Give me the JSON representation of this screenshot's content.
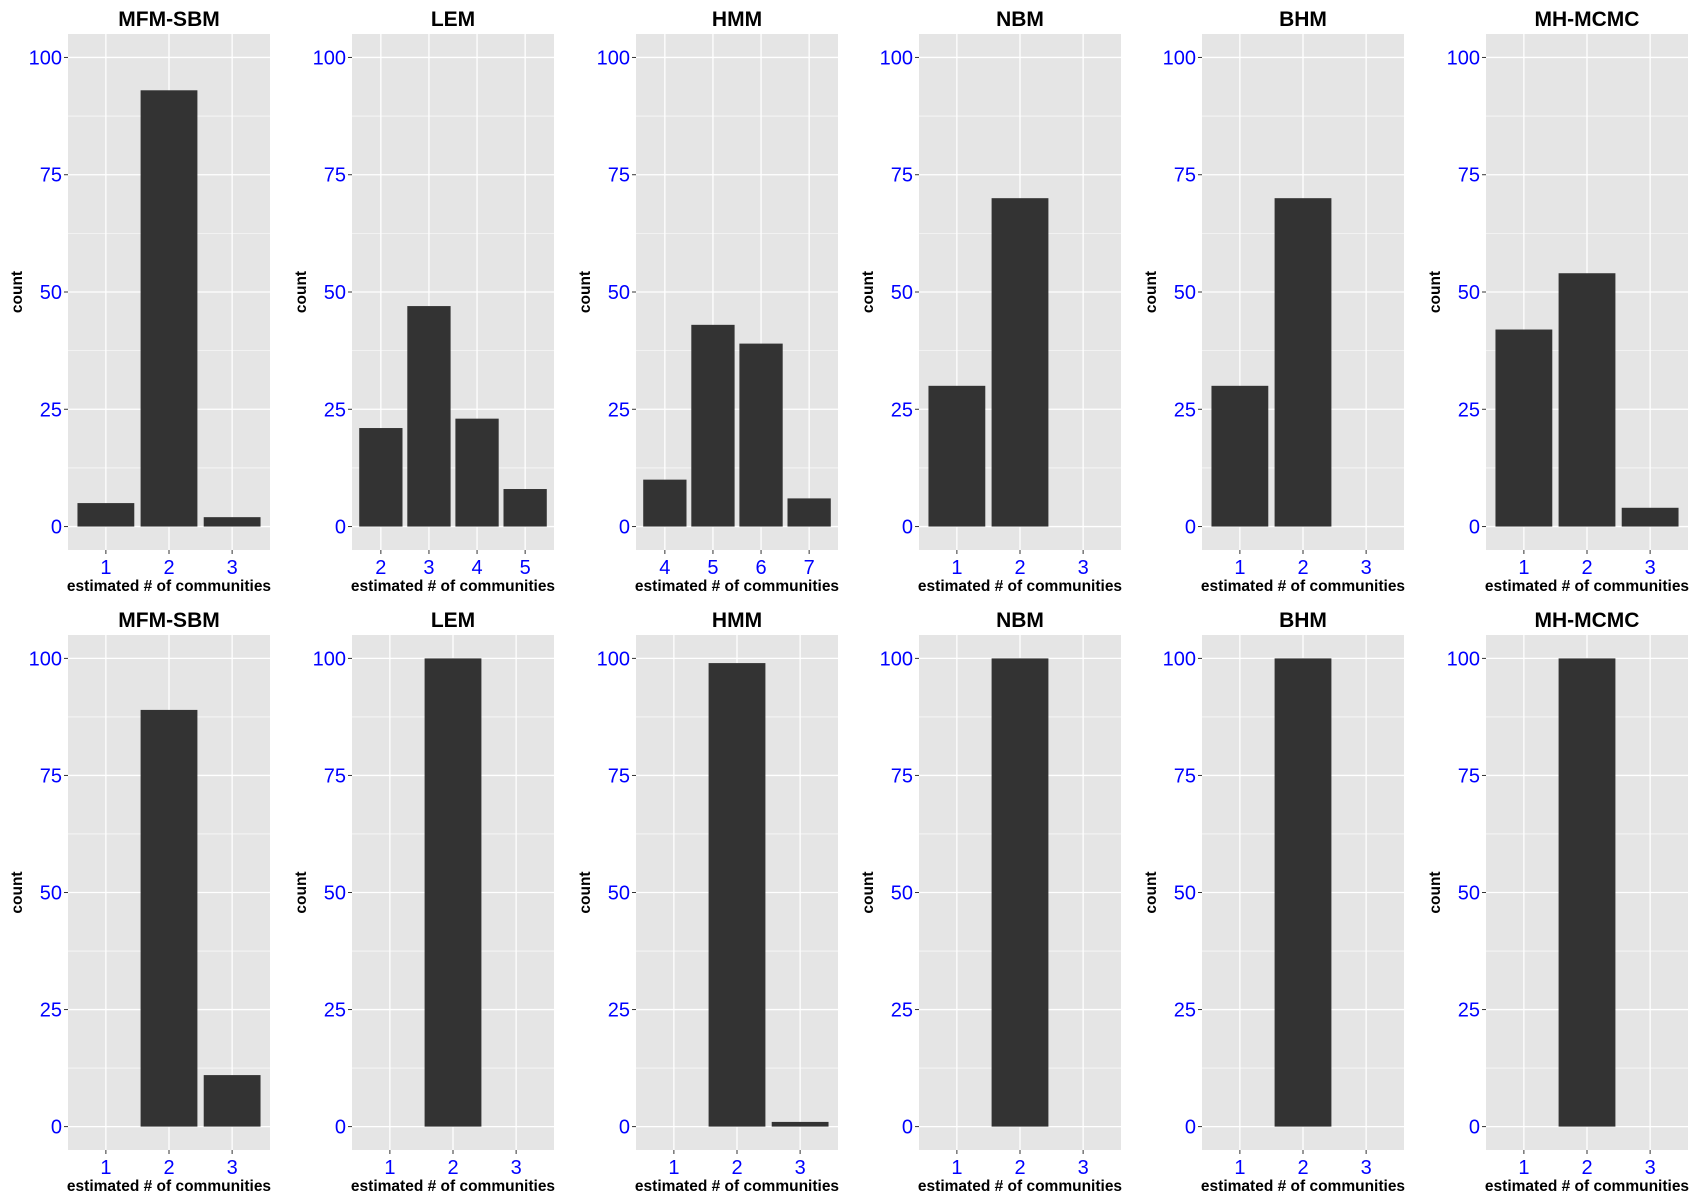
{
  "chart_data": [
    {
      "type": "bar",
      "title": "MFM-SBM",
      "xlabel": "estimated # of communities",
      "ylabel": "count",
      "categories": [
        "1",
        "2",
        "3"
      ],
      "values": [
        5,
        93,
        2
      ],
      "ylim": [
        0,
        100
      ],
      "yticks": [
        0,
        25,
        50,
        75,
        100
      ]
    },
    {
      "type": "bar",
      "title": "LEM",
      "xlabel": "estimated # of communities",
      "ylabel": "count",
      "categories": [
        "2",
        "3",
        "4",
        "5"
      ],
      "values": [
        21,
        47,
        23,
        8
      ],
      "ylim": [
        0,
        100
      ],
      "yticks": [
        0,
        25,
        50,
        75,
        100
      ]
    },
    {
      "type": "bar",
      "title": "HMM",
      "xlabel": "estimated # of communities",
      "ylabel": "count",
      "categories": [
        "4",
        "5",
        "6",
        "7"
      ],
      "values": [
        10,
        43,
        39,
        6
      ],
      "ylim": [
        0,
        100
      ],
      "yticks": [
        0,
        25,
        50,
        75,
        100
      ]
    },
    {
      "type": "bar",
      "title": "NBM",
      "xlabel": "estimated # of communities",
      "ylabel": "count",
      "categories": [
        "1",
        "2",
        "3"
      ],
      "values": [
        30,
        70,
        0
      ],
      "ylim": [
        0,
        100
      ],
      "yticks": [
        0,
        25,
        50,
        75,
        100
      ]
    },
    {
      "type": "bar",
      "title": "BHM",
      "xlabel": "estimated # of communities",
      "ylabel": "count",
      "categories": [
        "1",
        "2",
        "3"
      ],
      "values": [
        30,
        70,
        0
      ],
      "ylim": [
        0,
        100
      ],
      "yticks": [
        0,
        25,
        50,
        75,
        100
      ]
    },
    {
      "type": "bar",
      "title": "MH-MCMC",
      "xlabel": "estimated # of communities",
      "ylabel": "count",
      "categories": [
        "1",
        "2",
        "3"
      ],
      "values": [
        42,
        54,
        4
      ],
      "ylim": [
        0,
        100
      ],
      "yticks": [
        0,
        25,
        50,
        75,
        100
      ]
    },
    {
      "type": "bar",
      "title": "MFM-SBM",
      "xlabel": "estimated # of communities",
      "ylabel": "count",
      "categories": [
        "1",
        "2",
        "3"
      ],
      "values": [
        0,
        89,
        11
      ],
      "ylim": [
        0,
        100
      ],
      "yticks": [
        0,
        25,
        50,
        75,
        100
      ]
    },
    {
      "type": "bar",
      "title": "LEM",
      "xlabel": "estimated # of communities",
      "ylabel": "count",
      "categories": [
        "1",
        "2",
        "3"
      ],
      "values": [
        0,
        100,
        0
      ],
      "ylim": [
        0,
        100
      ],
      "yticks": [
        0,
        25,
        50,
        75,
        100
      ]
    },
    {
      "type": "bar",
      "title": "HMM",
      "xlabel": "estimated # of communities",
      "ylabel": "count",
      "categories": [
        "1",
        "2",
        "3"
      ],
      "values": [
        0,
        99,
        1
      ],
      "ylim": [
        0,
        100
      ],
      "yticks": [
        0,
        25,
        50,
        75,
        100
      ]
    },
    {
      "type": "bar",
      "title": "NBM",
      "xlabel": "estimated # of communities",
      "ylabel": "count",
      "categories": [
        "1",
        "2",
        "3"
      ],
      "values": [
        0,
        100,
        0
      ],
      "ylim": [
        0,
        100
      ],
      "yticks": [
        0,
        25,
        50,
        75,
        100
      ]
    },
    {
      "type": "bar",
      "title": "BHM",
      "xlabel": "estimated # of communities",
      "ylabel": "count",
      "categories": [
        "1",
        "2",
        "3"
      ],
      "values": [
        0,
        100,
        0
      ],
      "ylim": [
        0,
        100
      ],
      "yticks": [
        0,
        25,
        50,
        75,
        100
      ]
    },
    {
      "type": "bar",
      "title": "MH-MCMC",
      "xlabel": "estimated # of communities",
      "ylabel": "count",
      "categories": [
        "1",
        "2",
        "3"
      ],
      "values": [
        0,
        100,
        0
      ],
      "ylim": [
        0,
        100
      ],
      "yticks": [
        0,
        25,
        50,
        75,
        100
      ]
    }
  ],
  "colors": {
    "panel_bg": "#e5e5e5",
    "grid": "#ffffff",
    "bar": "#333333",
    "tick_text": "#0000ff"
  }
}
